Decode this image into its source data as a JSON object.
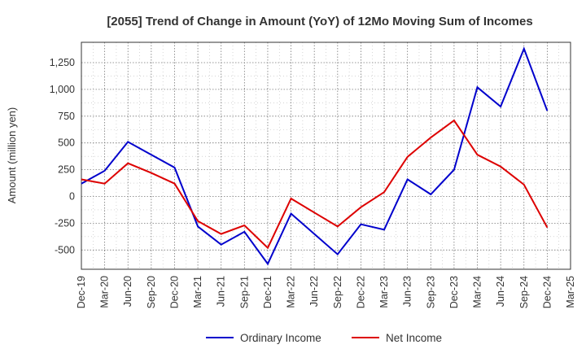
{
  "chart_data": {
    "type": "line",
    "title": "[2055]  Trend of Change in Amount (YoY) of 12Mo Moving Sum of Incomes",
    "ylabel": "Amount (million yen)",
    "xlabel": "",
    "categories": [
      "Dec-19",
      "Mar-20",
      "Jun-20",
      "Sep-20",
      "Dec-20",
      "Mar-21",
      "Jun-21",
      "Sep-21",
      "Dec-21",
      "Mar-22",
      "Jun-22",
      "Sep-22",
      "Dec-22",
      "Mar-23",
      "Jun-23",
      "Sep-23",
      "Dec-23",
      "Mar-24",
      "Jun-24",
      "Sep-24",
      "Dec-24",
      "Mar-25"
    ],
    "ylim": [
      -680,
      1440
    ],
    "yticks": [
      -500,
      -250,
      0,
      250,
      500,
      750,
      1000,
      1250
    ],
    "ytick_labels": [
      "-500",
      "-250",
      "0",
      "250",
      "500",
      "750",
      "1,000",
      "1,250"
    ],
    "grid": true,
    "legend_position": "bottom",
    "series": [
      {
        "name": "Ordinary Income",
        "color": "#0000cc",
        "values": [
          120,
          240,
          510,
          390,
          270,
          -280,
          -450,
          -330,
          -630,
          -160,
          -350,
          -540,
          -260,
          -310,
          160,
          20,
          250,
          1020,
          840,
          1380,
          800,
          null
        ]
      },
      {
        "name": "Net Income",
        "color": "#dd0000",
        "values": [
          160,
          120,
          310,
          220,
          120,
          -230,
          -350,
          -270,
          -480,
          -20,
          -150,
          -280,
          -100,
          40,
          370,
          550,
          710,
          390,
          280,
          110,
          -290,
          null
        ]
      }
    ]
  }
}
